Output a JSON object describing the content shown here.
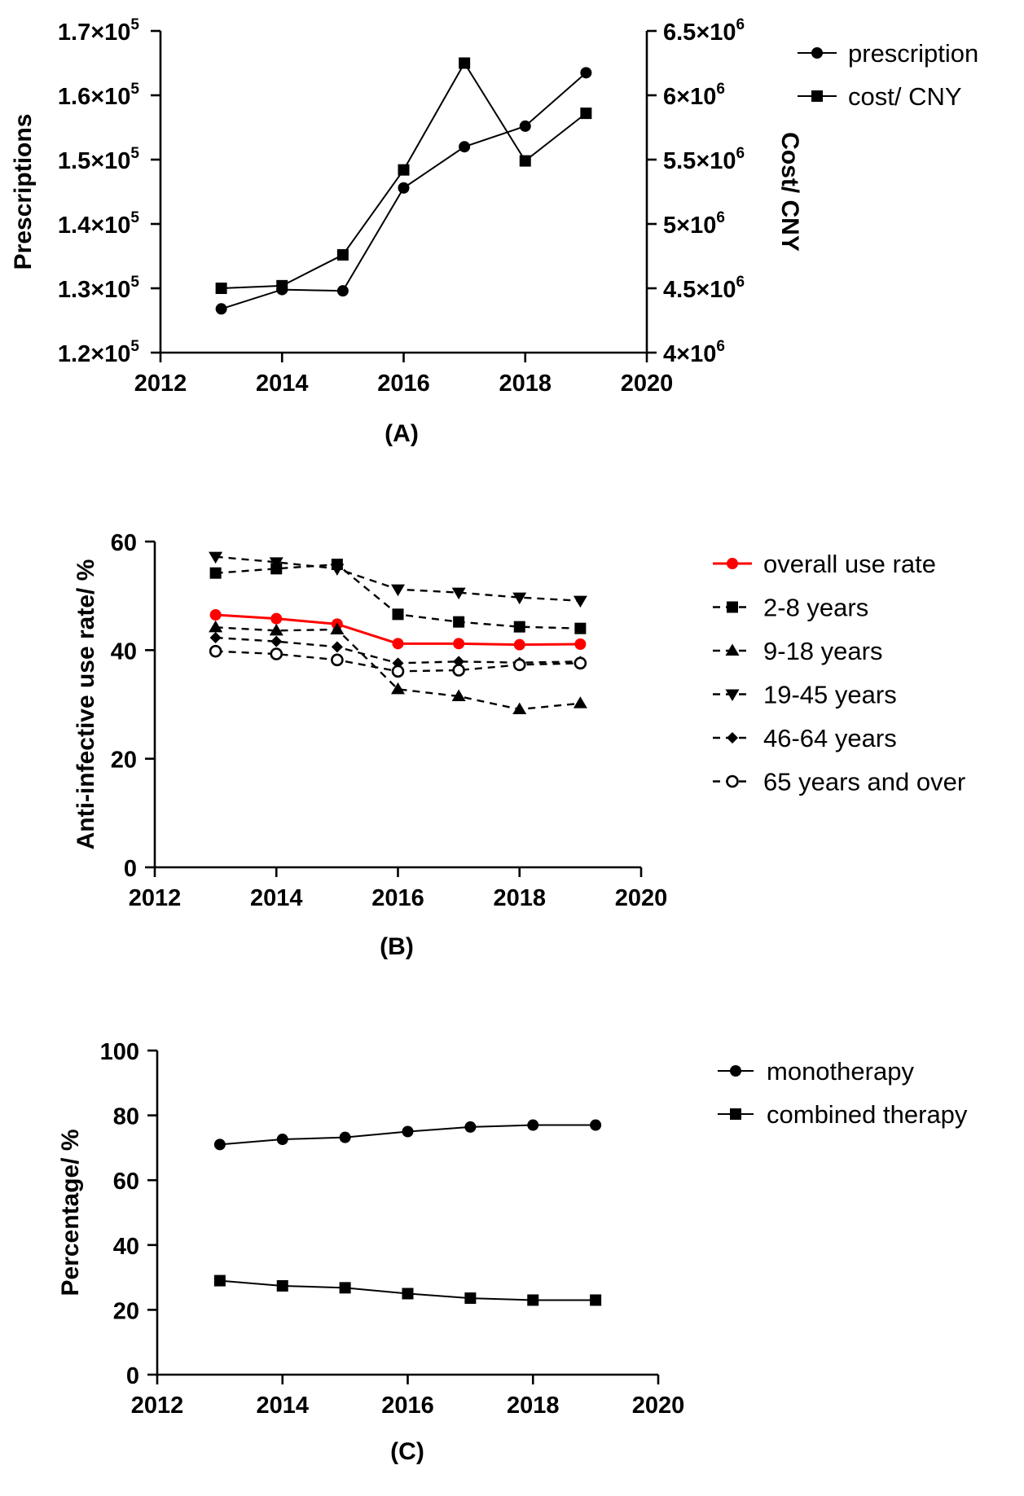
{
  "chart_data": [
    {
      "type": "line",
      "panel_label": "(A)",
      "xlim": [
        2012,
        2020
      ],
      "x_ticks": [
        "2012",
        "2014",
        "2016",
        "2018",
        "2020"
      ],
      "ylabel": "Prescriptions",
      "ylim": [
        120000,
        170000
      ],
      "y_ticks": [
        {
          "value": 120000,
          "base": "1.2×10",
          "exp": "5"
        },
        {
          "value": 130000,
          "base": "1.3×10",
          "exp": "5"
        },
        {
          "value": 140000,
          "base": "1.4×10",
          "exp": "5"
        },
        {
          "value": 150000,
          "base": "1.5×10",
          "exp": "5"
        },
        {
          "value": 160000,
          "base": "1.6×10",
          "exp": "5"
        },
        {
          "value": 170000,
          "base": "1.7×10",
          "exp": "5"
        }
      ],
      "y2label": "Cost/ CNY",
      "y2lim": [
        4000000,
        6500000
      ],
      "y2_ticks": [
        {
          "value": 4000000,
          "base": "4×10",
          "exp": "6"
        },
        {
          "value": 4500000,
          "base": "4.5×10",
          "exp": "6"
        },
        {
          "value": 5000000,
          "base": "5×10",
          "exp": "6"
        },
        {
          "value": 5500000,
          "base": "5.5×10",
          "exp": "6"
        },
        {
          "value": 6000000,
          "base": "6×10",
          "exp": "6"
        },
        {
          "value": 6500000,
          "base": "6.5×10",
          "exp": "6"
        }
      ],
      "legend_position": "top-right outside",
      "series": [
        {
          "name": "prescription",
          "axis": "left",
          "marker": "circle",
          "color": "#000000",
          "dash": false,
          "x": [
            2013,
            2014,
            2015,
            2016,
            2017,
            2018,
            2019
          ],
          "values": [
            126800,
            129800,
            129600,
            145600,
            152000,
            155200,
            163500
          ]
        },
        {
          "name": "cost/ CNY",
          "axis": "right",
          "marker": "square",
          "color": "#000000",
          "dash": false,
          "x": [
            2013,
            2014,
            2015,
            2016,
            2017,
            2018,
            2019
          ],
          "values": [
            4500000,
            4520000,
            4760000,
            5420000,
            6250000,
            5490000,
            5860000
          ]
        }
      ]
    },
    {
      "type": "line",
      "panel_label": "(B)",
      "xlim": [
        2012,
        2020
      ],
      "x_ticks": [
        "2012",
        "2014",
        "2016",
        "2018",
        "2020"
      ],
      "ylabel": "Anti-infective use rate/ %",
      "ylim": [
        0,
        60
      ],
      "y_ticks": [
        {
          "value": 0,
          "label": "0"
        },
        {
          "value": 20,
          "label": "20"
        },
        {
          "value": 40,
          "label": "40"
        },
        {
          "value": 60,
          "label": "60"
        }
      ],
      "legend_position": "right outside",
      "series": [
        {
          "name": "overall use rate",
          "marker": "circle",
          "color": "#ff0000",
          "dash": false,
          "x": [
            2013,
            2014,
            2015,
            2016,
            2017,
            2018,
            2019
          ],
          "values": [
            46.5,
            45.8,
            44.8,
            41.2,
            41.2,
            41.0,
            41.1
          ]
        },
        {
          "name": "2-8 years",
          "marker": "square",
          "color": "#000000",
          "dash": true,
          "x": [
            2013,
            2014,
            2015,
            2016,
            2017,
            2018,
            2019
          ],
          "values": [
            54.2,
            55.0,
            55.8,
            46.6,
            45.2,
            44.3,
            44.0
          ]
        },
        {
          "name": "9-18 years",
          "marker": "triangle-up",
          "color": "#000000",
          "dash": true,
          "x": [
            2013,
            2014,
            2015,
            2016,
            2017,
            2018,
            2019
          ],
          "values": [
            44.2,
            43.6,
            43.8,
            32.8,
            31.5,
            29.1,
            30.2
          ]
        },
        {
          "name": "19-45 years",
          "marker": "triangle-down",
          "color": "#000000",
          "dash": true,
          "x": [
            2013,
            2014,
            2015,
            2016,
            2017,
            2018,
            2019
          ],
          "values": [
            57.2,
            56.2,
            55.0,
            51.2,
            50.6,
            49.7,
            49.1
          ]
        },
        {
          "name": "46-64 years",
          "marker": "diamond",
          "color": "#000000",
          "dash": true,
          "x": [
            2013,
            2014,
            2015,
            2016,
            2017,
            2018,
            2019
          ],
          "values": [
            42.3,
            41.6,
            40.6,
            37.6,
            37.9,
            37.7,
            37.9
          ]
        },
        {
          "name": "65 years and  over",
          "marker": "circle-open",
          "color": "#000000",
          "dash": true,
          "x": [
            2013,
            2014,
            2015,
            2016,
            2017,
            2018,
            2019
          ],
          "values": [
            39.8,
            39.3,
            38.2,
            36.1,
            36.3,
            37.3,
            37.6
          ]
        }
      ]
    },
    {
      "type": "line",
      "panel_label": "(C)",
      "xlim": [
        2012,
        2020
      ],
      "x_ticks": [
        "2012",
        "2014",
        "2016",
        "2018",
        "2020"
      ],
      "ylabel": "Percentage/ %",
      "ylim": [
        0,
        100
      ],
      "y_ticks": [
        {
          "value": 0,
          "label": "0"
        },
        {
          "value": 20,
          "label": "20"
        },
        {
          "value": 40,
          "label": "40"
        },
        {
          "value": 60,
          "label": "60"
        },
        {
          "value": 80,
          "label": "80"
        },
        {
          "value": 100,
          "label": "100"
        }
      ],
      "legend_position": "top-right outside",
      "series": [
        {
          "name": "monotherapy",
          "marker": "circle",
          "color": "#000000",
          "dash": false,
          "x": [
            2013,
            2014,
            2015,
            2016,
            2017,
            2018,
            2019
          ],
          "values": [
            71.0,
            72.6,
            73.2,
            75.0,
            76.4,
            77.0,
            77.0
          ]
        },
        {
          "name": "combined therapy",
          "marker": "square",
          "color": "#000000",
          "dash": false,
          "x": [
            2013,
            2014,
            2015,
            2016,
            2017,
            2018,
            2019
          ],
          "values": [
            29.0,
            27.4,
            26.8,
            25.0,
            23.6,
            23.0,
            23.0
          ]
        }
      ]
    }
  ]
}
